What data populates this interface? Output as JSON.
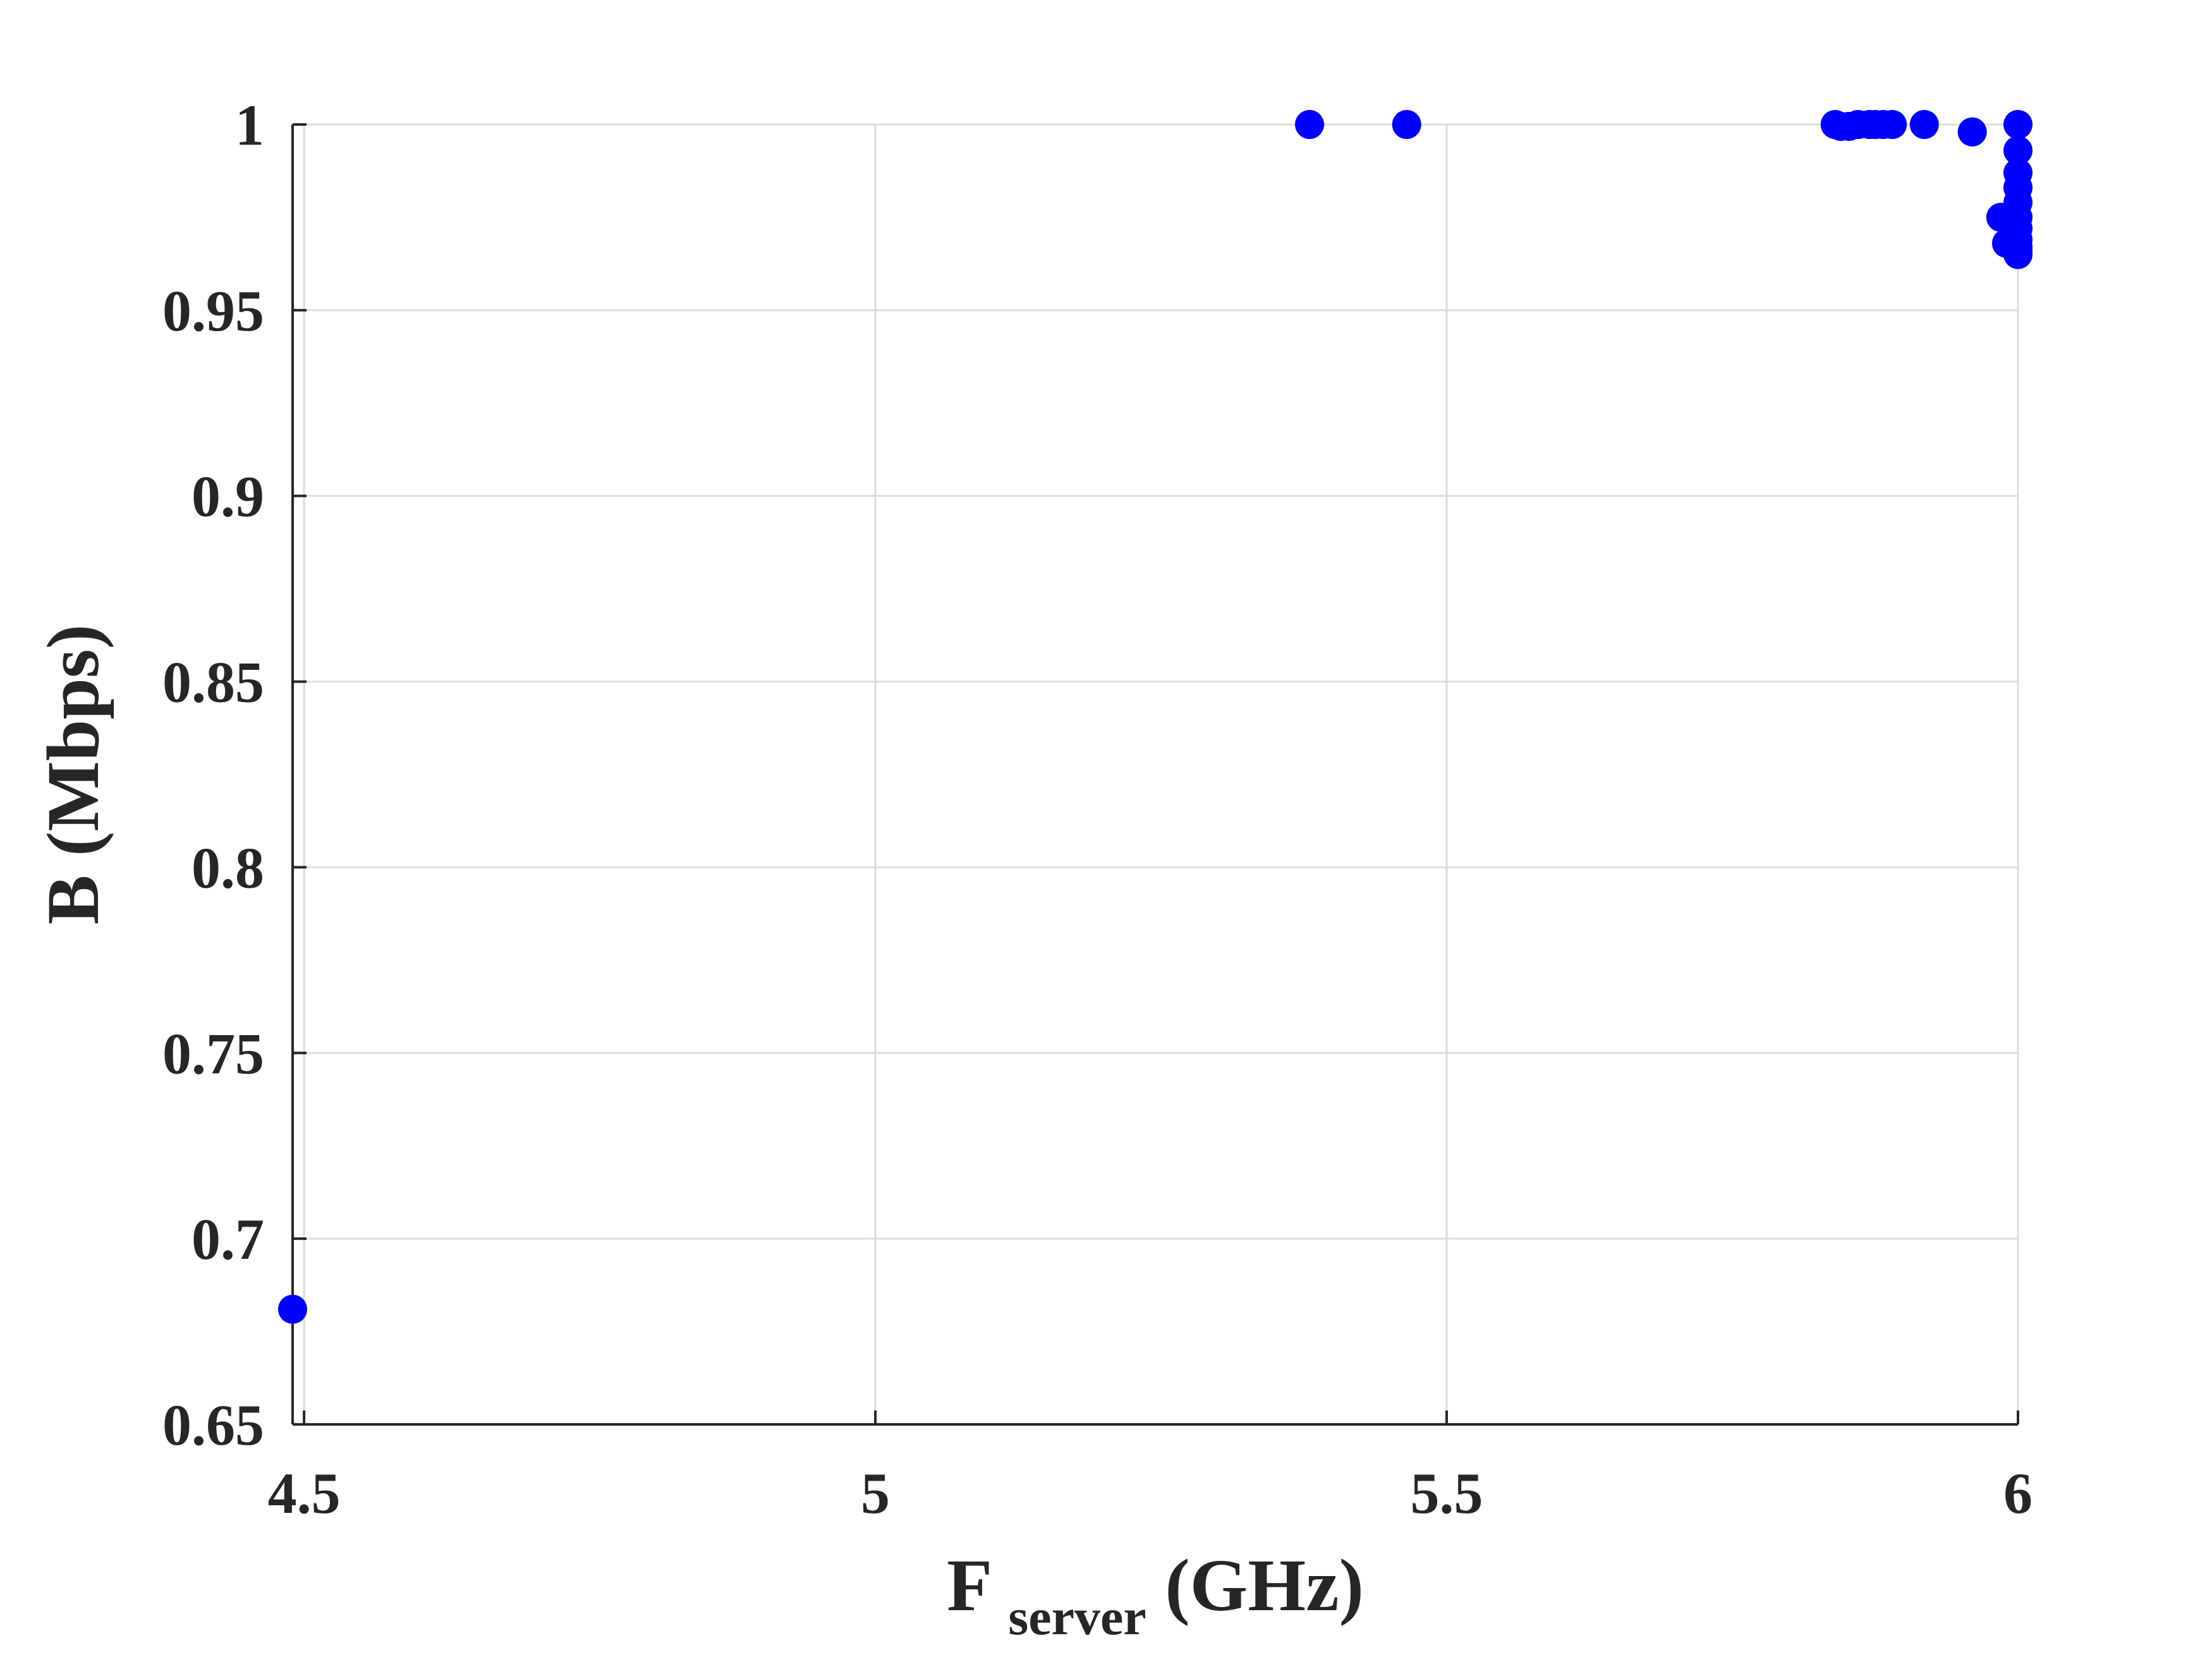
{
  "chart_data": {
    "type": "scatter",
    "title": "",
    "xlabel": {
      "main": "F",
      "subscript": "server",
      "unit": " (GHz)"
    },
    "ylabel": "B (Mbps)",
    "xlim": [
      4.49,
      6.0
    ],
    "ylim": [
      0.65,
      1.0
    ],
    "xticks": [
      4.5,
      5,
      5.5,
      6
    ],
    "xtick_labels": [
      "4.5",
      "5",
      "5.5",
      "6"
    ],
    "yticks": [
      0.65,
      0.7,
      0.75,
      0.8,
      0.85,
      0.9,
      0.95,
      1
    ],
    "ytick_labels": [
      "0.65",
      "0.7",
      "0.75",
      "0.8",
      "0.85",
      "0.9",
      "0.95",
      "1"
    ],
    "grid": true,
    "marker_color": "#0000ff",
    "series": [
      {
        "x": [
          4.49,
          5.38,
          5.465,
          5.84,
          5.845,
          5.852,
          5.86,
          5.87,
          5.875,
          5.882,
          5.89,
          5.918,
          5.96,
          5.985,
          5.99,
          6.0,
          6.0,
          6.0,
          6.0,
          6.0,
          6.0,
          6.0,
          6.0,
          6.0,
          6.0,
          6.0
        ],
        "y": [
          0.681,
          1.0,
          1.0,
          1.0,
          0.9995,
          0.9995,
          1.0,
          1.0,
          1.0,
          1.0,
          1.0,
          1.0,
          0.998,
          0.975,
          0.968,
          1.0,
          0.993,
          0.987,
          0.983,
          0.979,
          0.975,
          0.972,
          0.969,
          0.967,
          0.966,
          0.965
        ]
      }
    ]
  }
}
